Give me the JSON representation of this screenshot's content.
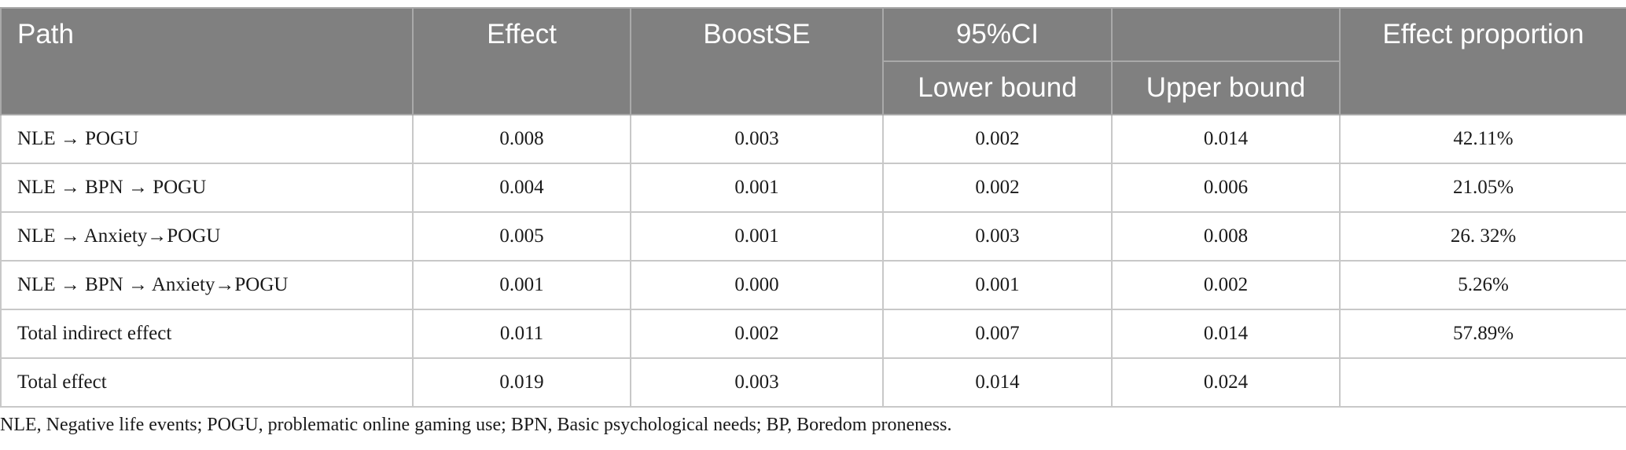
{
  "headers": {
    "path": "Path",
    "effect": "Effect",
    "boostse": "BoostSE",
    "ci": "95%CI",
    "lower": "Lower bound",
    "upper": "Upper bound",
    "proportion": "Effect proportion"
  },
  "rows": [
    {
      "path": "NLE → POGU",
      "effect": "0.008",
      "boostse": "0.003",
      "lower": "0.002",
      "upper": "0.014",
      "proportion": "42.11%"
    },
    {
      "path": "NLE → BPN → POGU",
      "effect": "0.004",
      "boostse": "0.001",
      "lower": "0.002",
      "upper": "0.006",
      "proportion": "21.05%"
    },
    {
      "path": "NLE → Anxiety→POGU",
      "effect": "0.005",
      "boostse": "0.001",
      "lower": "0.003",
      "upper": "0.008",
      "proportion": "26. 32%"
    },
    {
      "path": "NLE → BPN → Anxiety→POGU",
      "effect": "0.001",
      "boostse": "0.000",
      "lower": "0.001",
      "upper": "0.002",
      "proportion": "5.26%"
    },
    {
      "path": "Total indirect effect",
      "effect": "0.011",
      "boostse": "0.002",
      "lower": "0.007",
      "upper": "0.014",
      "proportion": "57.89%"
    },
    {
      "path": "Total effect",
      "effect": "0.019",
      "boostse": "0.003",
      "lower": "0.014",
      "upper": "0.024",
      "proportion": ""
    }
  ],
  "footnote": "NLE, Negative life events; POGU, problematic online gaming use; BPN, Basic psychological needs; BP, Boredom proneness."
}
